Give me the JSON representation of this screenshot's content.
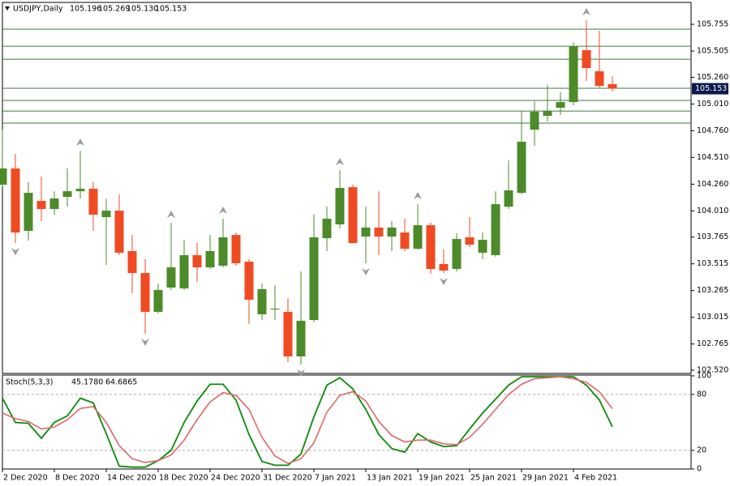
{
  "chart_data": [
    {
      "type": "candlestick",
      "title": "USDJPY,Daily",
      "header_values": [
        "105.196",
        "105.269",
        "105.130",
        "105.153"
      ],
      "categories": [
        "2 Dec 2020",
        null,
        null,
        null,
        "8 Dec 2020",
        null,
        null,
        null,
        "14 Dec 2020",
        null,
        null,
        null,
        "18 Dec 2020",
        null,
        null,
        null,
        "24 Dec 2020",
        null,
        null,
        null,
        "31 Dec 2020",
        null,
        null,
        null,
        "7 Jan 2021",
        null,
        null,
        null,
        "13 Jan 2021",
        null,
        null,
        null,
        "19 Jan 2021",
        null,
        null,
        null,
        "25 Jan 2021",
        null,
        null,
        null,
        "29 Jan 2021",
        null,
        null,
        null,
        "4 Feb 2021",
        null,
        null,
        null
      ],
      "open": [
        104.255,
        104.407,
        103.823,
        104.103,
        104.028,
        104.141,
        104.194,
        104.217,
        103.952,
        104.012,
        103.634,
        103.429,
        103.066,
        103.293,
        103.285,
        103.596,
        103.482,
        103.497,
        103.785,
        103.535,
        103.043,
        103.088,
        103.066,
        102.649,
        102.99,
        103.755,
        103.884,
        104.232,
        103.77,
        103.854,
        103.77,
        103.808,
        103.656,
        103.876,
        103.513,
        103.467,
        103.763,
        103.619,
        103.596,
        104.05,
        104.179,
        104.77,
        104.899,
        104.975,
        105.028,
        105.513,
        105.316,
        105.196
      ],
      "high": [
        104.77,
        104.543,
        104.278,
        104.331,
        104.194,
        104.407,
        104.573,
        104.278,
        104.126,
        104.164,
        103.785,
        103.558,
        103.331,
        103.899,
        103.74,
        103.709,
        103.785,
        103.937,
        103.808,
        103.558,
        103.331,
        103.316,
        103.194,
        103.444,
        103.975,
        104.05,
        104.391,
        104.255,
        104.05,
        104.194,
        103.914,
        103.937,
        104.073,
        103.899,
        103.649,
        103.8,
        103.952,
        103.808,
        104.194,
        104.482,
        104.944,
        105.035,
        105.187,
        105.119,
        105.588,
        105.793,
        105.694,
        105.269
      ],
      "low": [
        104.24,
        103.709,
        103.732,
        103.914,
        103.975,
        104.05,
        104.126,
        103.823,
        103.505,
        103.596,
        103.24,
        102.861,
        103.051,
        103.27,
        103.27,
        103.346,
        103.467,
        103.482,
        103.497,
        102.952,
        102.99,
        102.99,
        102.596,
        102.573,
        102.967,
        103.634,
        103.846,
        103.709,
        103.52,
        103.596,
        103.634,
        103.634,
        103.649,
        103.422,
        103.429,
        103.444,
        103.672,
        103.558,
        103.581,
        104.028,
        104.164,
        104.619,
        104.846,
        104.907,
        104.997,
        105.225,
        105.164,
        105.13
      ],
      "close": [
        104.407,
        103.808,
        104.179,
        104.028,
        104.126,
        104.194,
        104.217,
        103.975,
        104.012,
        103.619,
        103.429,
        103.066,
        103.27,
        103.482,
        103.596,
        103.482,
        103.634,
        103.763,
        103.52,
        103.179,
        103.278,
        103.096,
        102.649,
        102.982,
        103.763,
        103.937,
        104.225,
        103.709,
        103.854,
        103.77,
        103.854,
        103.656,
        103.876,
        103.467,
        103.452,
        103.747,
        103.694,
        103.74,
        104.073,
        104.202,
        104.657,
        104.937,
        104.944,
        105.028,
        105.55,
        105.346,
        105.179,
        105.153
      ],
      "up_color": "#4c8a2a",
      "down_color": "#f04a22",
      "ylim": [
        102.49,
        105.96
      ],
      "yticks": [
        105.755,
        105.505,
        {
          "value": 105.26,
          "label": "105.260"
        },
        {
          "value": 105.01,
          "label": "105.010"
        },
        {
          "value": 104.76,
          "label": "104.760"
        },
        {
          "value": 104.51,
          "label": "104.510"
        },
        {
          "value": 104.26,
          "label": "104.260"
        },
        {
          "value": 104.01,
          "label": "104.010"
        },
        103.765,
        103.515,
        103.265,
        103.015,
        102.765,
        {
          "value": 102.52,
          "label": "102.520"
        }
      ],
      "last_price": {
        "value": 105.153,
        "label": "105.153"
      },
      "levels": [
        105.71,
        105.55,
        105.429,
        105.157,
        105.043,
        104.944,
        104.831
      ],
      "level_color": "#3d7a3d",
      "fractal_up": [
        6,
        13,
        17,
        26,
        32,
        45
      ],
      "fractal_down": [
        1,
        11,
        23,
        28,
        34
      ]
    },
    {
      "type": "line",
      "title": "Stoch(5,3,3)",
      "title_values": [
        "45.1780",
        "64.6865"
      ],
      "ylim": [
        0,
        100
      ],
      "yticks": [
        0,
        20,
        80,
        100
      ],
      "levels": [
        20,
        80
      ],
      "series": [
        {
          "color": "#0a8a0a",
          "values": [
            76,
            50,
            49,
            33,
            50,
            57,
            76,
            71,
            38,
            3,
            2,
            2,
            9,
            20,
            50,
            73,
            91,
            91,
            74,
            37,
            8,
            4,
            4,
            16,
            56,
            90,
            98,
            86,
            64,
            37,
            22,
            18,
            38,
            29,
            24,
            25,
            43,
            60,
            75,
            90,
            99,
            99,
            99,
            99,
            99,
            90,
            74,
            45.178
          ]
        },
        {
          "color": "#e06666",
          "values": [
            60,
            54,
            51,
            43,
            45,
            53,
            65,
            67,
            50,
            25,
            11,
            7,
            9,
            15,
            31,
            53,
            72,
            82,
            79,
            64,
            34,
            14,
            6,
            11,
            28,
            61,
            79,
            83,
            73,
            51,
            36,
            29,
            31,
            31,
            27,
            26,
            34,
            48,
            64,
            80,
            91,
            97,
            98,
            99,
            97,
            93,
            83,
            64.6865
          ]
        }
      ]
    }
  ]
}
